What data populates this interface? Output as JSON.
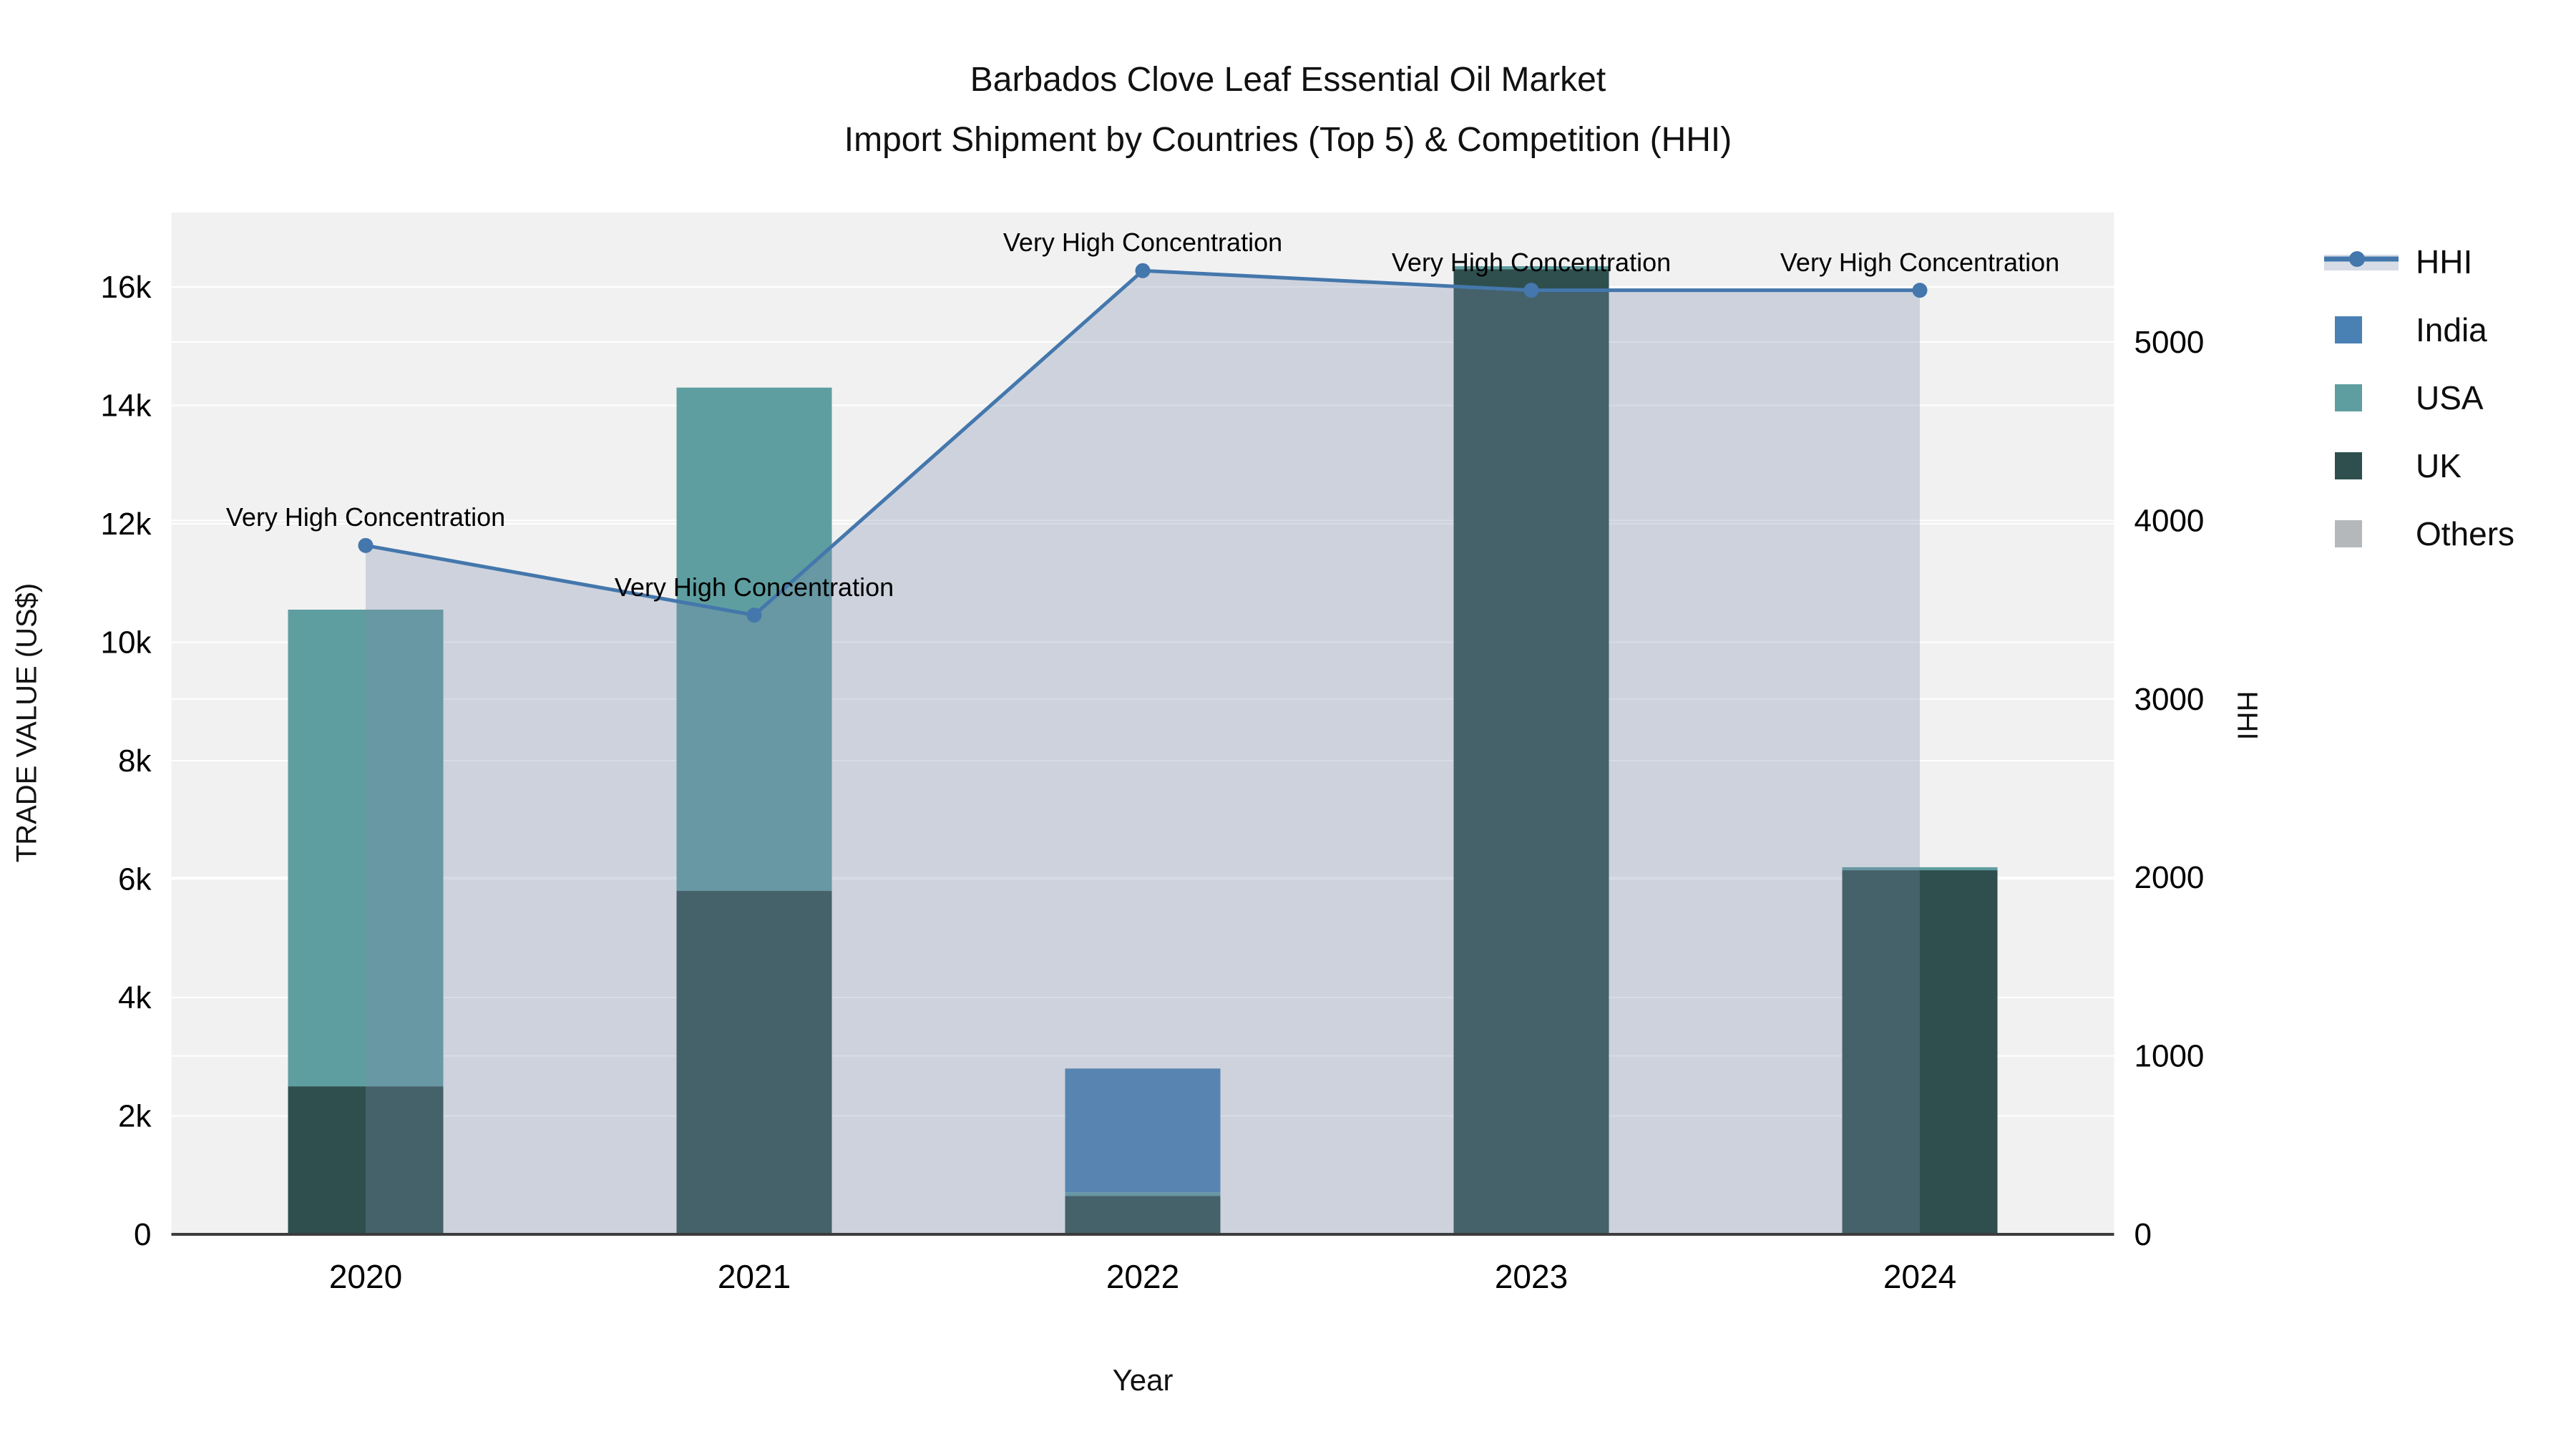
{
  "chart_data": {
    "type": "combo-stacked-bar-line",
    "title_line1": "Barbados Clove Leaf Essential Oil Market",
    "title_line2": "Import Shipment by Countries (Top 5) & Competition (HHI)",
    "xlabel": "Year",
    "ylabel_left": "TRADE VALUE (US$)",
    "ylabel_right": "HHI",
    "categories": [
      "2020",
      "2021",
      "2022",
      "2023",
      "2024"
    ],
    "stack_order": [
      "UK",
      "USA",
      "India",
      "Others"
    ],
    "series": [
      {
        "name": "India",
        "color": "#4a81b4",
        "values": [
          0,
          0,
          2090,
          0,
          0
        ]
      },
      {
        "name": "USA",
        "color": "#5f9ea0",
        "values": [
          8050,
          8500,
          60,
          50,
          50
        ]
      },
      {
        "name": "UK",
        "color": "#2e4f4e",
        "values": [
          2500,
          5800,
          650,
          16300,
          6150
        ]
      },
      {
        "name": "Others",
        "color": "#b5b8bb",
        "values": [
          0,
          0,
          0,
          0,
          0
        ]
      }
    ],
    "line_series": {
      "name": "HHI",
      "color": "#4477ac",
      "fill_color": "rgba(122,139,172,0.30)",
      "values": [
        3860,
        3470,
        5400,
        5290,
        5290
      ]
    },
    "annotations": [
      "Very High Concentration",
      "Very High Concentration",
      "Very High Concentration",
      "Very High Concentration",
      "Very High Concentration"
    ],
    "axis_left": {
      "ticks": [
        0,
        2000,
        4000,
        6000,
        8000,
        10000,
        12000,
        14000,
        16000
      ],
      "labels": [
        "0",
        "2k",
        "4k",
        "6k",
        "8k",
        "10k",
        "12k",
        "14k",
        "16k"
      ]
    },
    "axis_right": {
      "ticks": [
        0,
        1000,
        2000,
        3000,
        4000,
        5000
      ],
      "labels": [
        "0",
        "1000",
        "2000",
        "3000",
        "4000",
        "5000"
      ]
    },
    "legend": [
      {
        "label": "HHI",
        "type": "line"
      },
      {
        "label": "India",
        "type": "swatch"
      },
      {
        "label": "USA",
        "type": "swatch"
      },
      {
        "label": "UK",
        "type": "swatch"
      },
      {
        "label": "Others",
        "type": "swatch"
      }
    ],
    "plot_bg": "#f1f1f2",
    "grid_color": "#ffffff",
    "axis_line_color": "#3c3c3c"
  }
}
